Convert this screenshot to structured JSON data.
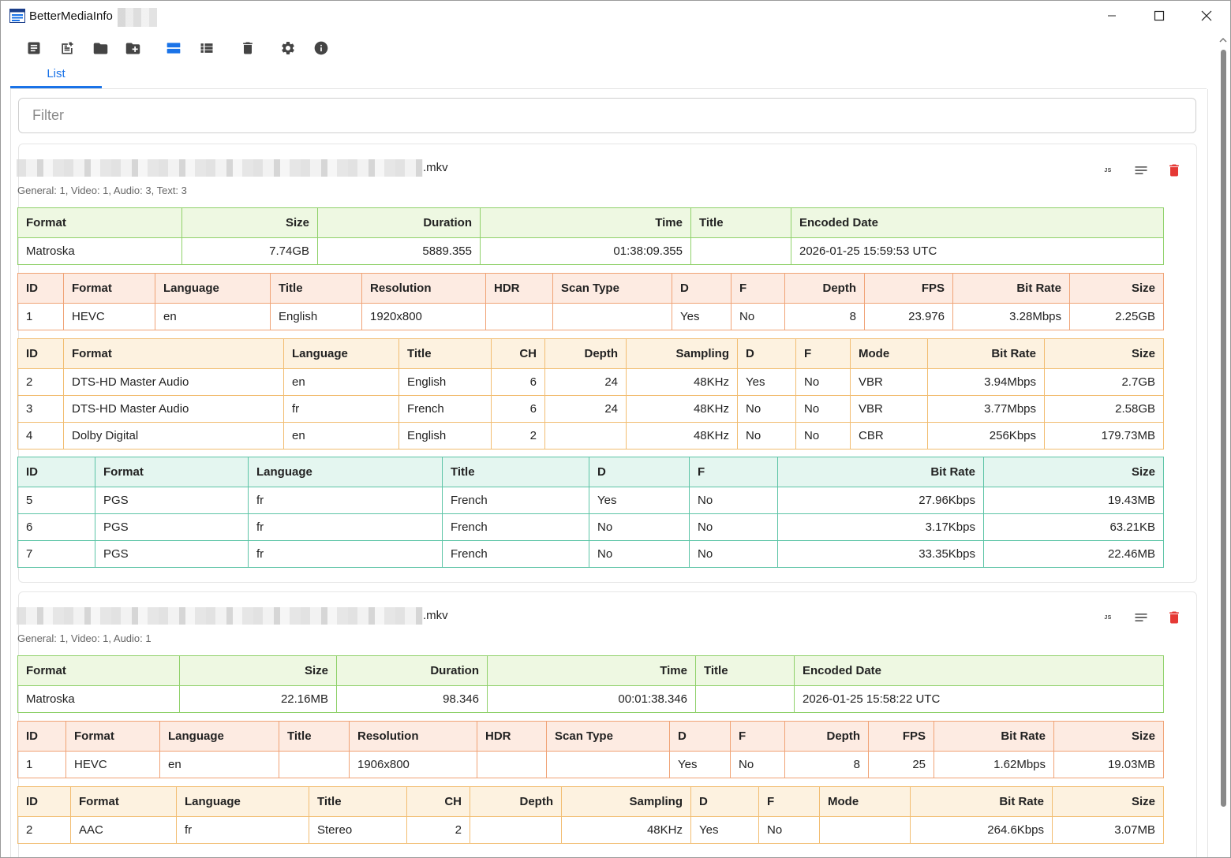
{
  "window": {
    "title": "BetterMediaInfo"
  },
  "tabs": [
    {
      "label": "List"
    }
  ],
  "filter": {
    "placeholder": "Filter",
    "value": ""
  },
  "files": [
    {
      "name_suffix": ".mkv",
      "summary": "General: 1, Video: 1, Audio: 3, Text: 3",
      "general": {
        "headers": [
          "Format",
          "Size",
          "Duration",
          "Time",
          "Title",
          "Encoded Date"
        ],
        "rows": [
          [
            "Matroska",
            "7.74GB",
            "5889.355",
            "01:38:09.355",
            "",
            "2026-01-25 15:59:53 UTC"
          ]
        ]
      },
      "video": {
        "headers": [
          "ID",
          "Format",
          "Language",
          "Title",
          "Resolution",
          "HDR",
          "Scan Type",
          "D",
          "F",
          "Depth",
          "FPS",
          "Bit Rate",
          "Size"
        ],
        "rows": [
          [
            "1",
            "HEVC",
            "en",
            "English",
            "1920x800",
            "",
            "",
            "Yes",
            "No",
            "8",
            "23.976",
            "3.28Mbps",
            "2.25GB"
          ]
        ]
      },
      "audio": {
        "headers": [
          "ID",
          "Format",
          "Language",
          "Title",
          "CH",
          "Depth",
          "Sampling",
          "D",
          "F",
          "Mode",
          "Bit Rate",
          "Size"
        ],
        "rows": [
          [
            "2",
            "DTS-HD Master Audio",
            "en",
            "English",
            "6",
            "24",
            "48KHz",
            "Yes",
            "No",
            "VBR",
            "3.94Mbps",
            "2.7GB"
          ],
          [
            "3",
            "DTS-HD Master Audio",
            "fr",
            "French",
            "6",
            "24",
            "48KHz",
            "No",
            "No",
            "VBR",
            "3.77Mbps",
            "2.58GB"
          ],
          [
            "4",
            "Dolby Digital",
            "en",
            "English",
            "2",
            "",
            "48KHz",
            "No",
            "No",
            "CBR",
            "256Kbps",
            "179.73MB"
          ]
        ]
      },
      "text": {
        "headers": [
          "ID",
          "Format",
          "Language",
          "Title",
          "D",
          "F",
          "Bit Rate",
          "Size"
        ],
        "rows": [
          [
            "5",
            "PGS",
            "fr",
            "French",
            "Yes",
            "No",
            "27.96Kbps",
            "19.43MB"
          ],
          [
            "6",
            "PGS",
            "fr",
            "French",
            "No",
            "No",
            "3.17Kbps",
            "63.21KB"
          ],
          [
            "7",
            "PGS",
            "fr",
            "French",
            "No",
            "No",
            "33.35Kbps",
            "22.46MB"
          ]
        ]
      }
    },
    {
      "name_suffix": ".mkv",
      "summary": "General: 1, Video: 1, Audio: 1",
      "general": {
        "headers": [
          "Format",
          "Size",
          "Duration",
          "Time",
          "Title",
          "Encoded Date"
        ],
        "rows": [
          [
            "Matroska",
            "22.16MB",
            "98.346",
            "00:01:38.346",
            "",
            "2026-01-25 15:58:22 UTC"
          ]
        ]
      },
      "video": {
        "headers": [
          "ID",
          "Format",
          "Language",
          "Title",
          "Resolution",
          "HDR",
          "Scan Type",
          "D",
          "F",
          "Depth",
          "FPS",
          "Bit Rate",
          "Size"
        ],
        "rows": [
          [
            "1",
            "HEVC",
            "en",
            "",
            "1906x800",
            "",
            "",
            "Yes",
            "No",
            "8",
            "25",
            "1.62Mbps",
            "19.03MB"
          ]
        ]
      },
      "audio": {
        "headers": [
          "ID",
          "Format",
          "Language",
          "Title",
          "CH",
          "Depth",
          "Sampling",
          "D",
          "F",
          "Mode",
          "Bit Rate",
          "Size"
        ],
        "rows": [
          [
            "2",
            "AAC",
            "fr",
            "Stereo",
            "2",
            "",
            "48KHz",
            "Yes",
            "No",
            "",
            "264.6Kbps",
            "3.07MB"
          ]
        ]
      }
    }
  ],
  "card_action_labels": {
    "json": "JS"
  },
  "colors": {
    "accent": "#1a73e8",
    "delete": "#e53935",
    "general_border": "#8fd16a",
    "video_border": "#f0a376",
    "audio_border": "#f2bd71",
    "text_border": "#5cc4a6"
  }
}
